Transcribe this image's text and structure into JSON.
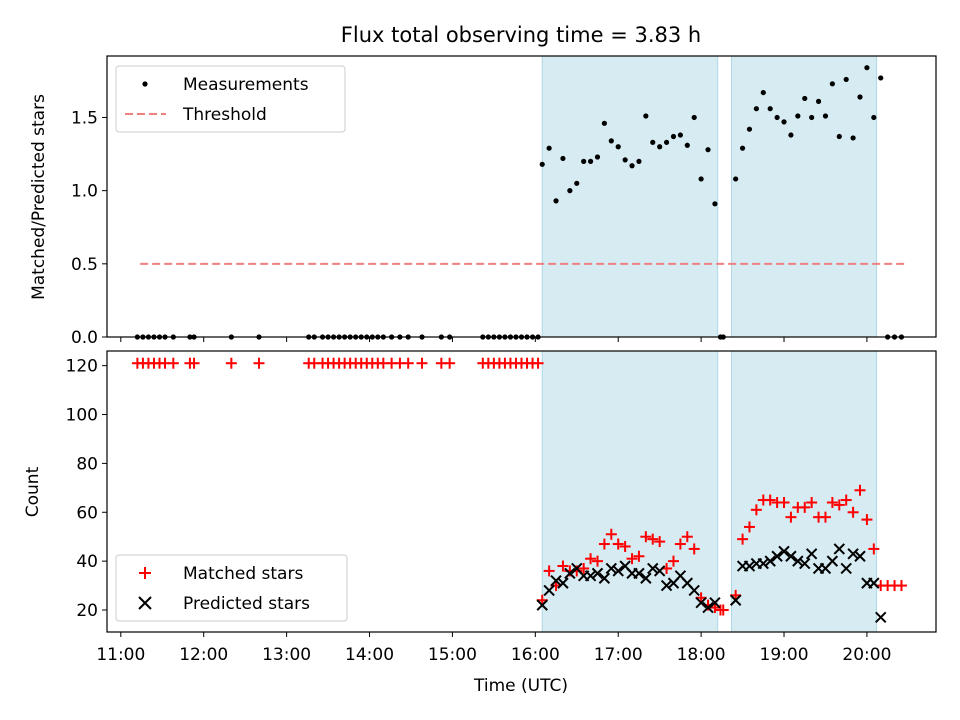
{
  "chart_data": [
    {
      "type": "scatter",
      "title": "Flux total observing time = 3.83 h",
      "xlabel": "",
      "ylabel": "Matched/Predicted stars",
      "xlim": [
        "10:50",
        "20:50"
      ],
      "ylim": [
        0,
        1.92
      ],
      "yticks": [
        "0.0",
        "0.5",
        "1.0",
        "1.5"
      ],
      "shaded_intervals": [
        [
          "16:05",
          "18:12"
        ],
        [
          "18:22",
          "20:07"
        ]
      ],
      "legend": "upper-left",
      "series": [
        {
          "name": "Measurements",
          "marker": "dot",
          "color": "#000000",
          "points": [
            [
              "11:12",
              0
            ],
            [
              "11:16",
              0
            ],
            [
              "11:20",
              0
            ],
            [
              "11:24",
              0
            ],
            [
              "11:28",
              0
            ],
            [
              "11:32",
              0
            ],
            [
              "11:38",
              0
            ],
            [
              "11:50",
              0
            ],
            [
              "11:53",
              0
            ],
            [
              "12:20",
              0
            ],
            [
              "12:40",
              0
            ],
            [
              "13:16",
              0
            ],
            [
              "13:20",
              0
            ],
            [
              "13:26",
              0
            ],
            [
              "13:30",
              0
            ],
            [
              "13:34",
              0
            ],
            [
              "13:38",
              0
            ],
            [
              "13:42",
              0
            ],
            [
              "13:46",
              0
            ],
            [
              "13:50",
              0
            ],
            [
              "13:54",
              0
            ],
            [
              "13:58",
              0
            ],
            [
              "14:02",
              0
            ],
            [
              "14:06",
              0
            ],
            [
              "14:10",
              0
            ],
            [
              "14:16",
              0
            ],
            [
              "14:22",
              0
            ],
            [
              "14:28",
              0
            ],
            [
              "14:38",
              0
            ],
            [
              "14:52",
              0
            ],
            [
              "14:58",
              0
            ],
            [
              "15:22",
              0
            ],
            [
              "15:26",
              0
            ],
            [
              "15:30",
              0
            ],
            [
              "15:34",
              0
            ],
            [
              "15:38",
              0
            ],
            [
              "15:42",
              0
            ],
            [
              "15:46",
              0
            ],
            [
              "15:50",
              0
            ],
            [
              "15:54",
              0
            ],
            [
              "15:58",
              0
            ],
            [
              "16:02",
              0
            ],
            [
              "16:05",
              1.18
            ],
            [
              "16:10",
              1.29
            ],
            [
              "16:15",
              0.93
            ],
            [
              "16:20",
              1.22
            ],
            [
              "16:25",
              1.0
            ],
            [
              "16:30",
              1.05
            ],
            [
              "16:35",
              1.2
            ],
            [
              "16:40",
              1.2
            ],
            [
              "16:45",
              1.23
            ],
            [
              "16:50",
              1.46
            ],
            [
              "16:55",
              1.34
            ],
            [
              "17:00",
              1.3
            ],
            [
              "17:05",
              1.21
            ],
            [
              "17:10",
              1.17
            ],
            [
              "17:15",
              1.2
            ],
            [
              "17:20",
              1.51
            ],
            [
              "17:25",
              1.33
            ],
            [
              "17:30",
              1.3
            ],
            [
              "17:35",
              1.33
            ],
            [
              "17:40",
              1.37
            ],
            [
              "17:45",
              1.38
            ],
            [
              "17:50",
              1.31
            ],
            [
              "17:55",
              1.5
            ],
            [
              "18:00",
              1.08
            ],
            [
              "18:05",
              1.28
            ],
            [
              "18:10",
              0.91
            ],
            [
              "18:14",
              0
            ],
            [
              "18:16",
              0
            ],
            [
              "18:25",
              1.08
            ],
            [
              "18:30",
              1.29
            ],
            [
              "18:35",
              1.42
            ],
            [
              "18:40",
              1.56
            ],
            [
              "18:45",
              1.67
            ],
            [
              "18:50",
              1.56
            ],
            [
              "18:55",
              1.5
            ],
            [
              "19:00",
              1.47
            ],
            [
              "19:05",
              1.38
            ],
            [
              "19:10",
              1.51
            ],
            [
              "19:15",
              1.63
            ],
            [
              "19:20",
              1.5
            ],
            [
              "19:25",
              1.61
            ],
            [
              "19:30",
              1.51
            ],
            [
              "19:35",
              1.73
            ],
            [
              "19:40",
              1.37
            ],
            [
              "19:45",
              1.76
            ],
            [
              "19:50",
              1.36
            ],
            [
              "19:55",
              1.64
            ],
            [
              "20:00",
              1.84
            ],
            [
              "20:05",
              1.5
            ],
            [
              "20:10",
              1.77
            ],
            [
              "20:15",
              0
            ],
            [
              "20:20",
              0
            ],
            [
              "20:25",
              0
            ]
          ]
        },
        {
          "name": "Threshold",
          "marker": "dashed-line",
          "color": "#f08080",
          "points": [
            [
              "11:14",
              0.5
            ],
            [
              "20:28",
              0.5
            ]
          ]
        }
      ]
    },
    {
      "type": "scatter",
      "title": "",
      "xlabel": "Time (UTC)",
      "ylabel": "Count",
      "xlim": [
        "10:50",
        "20:50"
      ],
      "ylim": [
        11,
        126
      ],
      "yticks": [
        "20",
        "40",
        "60",
        "80",
        "100",
        "120"
      ],
      "xticks": [
        "11:00",
        "12:00",
        "13:00",
        "14:00",
        "15:00",
        "16:00",
        "17:00",
        "18:00",
        "19:00",
        "20:00"
      ],
      "shaded_intervals": [
        [
          "16:05",
          "18:12"
        ],
        [
          "18:22",
          "20:07"
        ]
      ],
      "legend": "lower-left",
      "series": [
        {
          "name": "Matched stars",
          "marker": "plus",
          "color": "#ff0000",
          "points": [
            [
              "11:12",
              121
            ],
            [
              "11:16",
              121
            ],
            [
              "11:20",
              121
            ],
            [
              "11:24",
              121
            ],
            [
              "11:28",
              121
            ],
            [
              "11:32",
              121
            ],
            [
              "11:38",
              121
            ],
            [
              "11:50",
              121
            ],
            [
              "11:53",
              121
            ],
            [
              "12:20",
              121
            ],
            [
              "12:40",
              121
            ],
            [
              "13:16",
              121
            ],
            [
              "13:20",
              121
            ],
            [
              "13:26",
              121
            ],
            [
              "13:30",
              121
            ],
            [
              "13:34",
              121
            ],
            [
              "13:38",
              121
            ],
            [
              "13:42",
              121
            ],
            [
              "13:46",
              121
            ],
            [
              "13:50",
              121
            ],
            [
              "13:54",
              121
            ],
            [
              "13:58",
              121
            ],
            [
              "14:02",
              121
            ],
            [
              "14:06",
              121
            ],
            [
              "14:10",
              121
            ],
            [
              "14:16",
              121
            ],
            [
              "14:22",
              121
            ],
            [
              "14:28",
              121
            ],
            [
              "14:38",
              121
            ],
            [
              "14:52",
              121
            ],
            [
              "14:58",
              121
            ],
            [
              "15:22",
              121
            ],
            [
              "15:26",
              121
            ],
            [
              "15:30",
              121
            ],
            [
              "15:34",
              121
            ],
            [
              "15:38",
              121
            ],
            [
              "15:42",
              121
            ],
            [
              "15:46",
              121
            ],
            [
              "15:50",
              121
            ],
            [
              "15:54",
              121
            ],
            [
              "15:58",
              121
            ],
            [
              "16:02",
              121
            ],
            [
              "16:05",
              24
            ],
            [
              "16:10",
              36
            ],
            [
              "16:15",
              30
            ],
            [
              "16:20",
              38
            ],
            [
              "16:25",
              36
            ],
            [
              "16:30",
              36
            ],
            [
              "16:35",
              37
            ],
            [
              "16:40",
              41
            ],
            [
              "16:45",
              40
            ],
            [
              "16:50",
              47
            ],
            [
              "16:55",
              51
            ],
            [
              "17:00",
              47
            ],
            [
              "17:05",
              46
            ],
            [
              "17:10",
              41
            ],
            [
              "17:15",
              42
            ],
            [
              "17:20",
              50
            ],
            [
              "17:25",
              49
            ],
            [
              "17:30",
              48
            ],
            [
              "17:35",
              37
            ],
            [
              "17:40",
              40
            ],
            [
              "17:45",
              47
            ],
            [
              "17:50",
              50
            ],
            [
              "17:55",
              45
            ],
            [
              "18:00",
              25
            ],
            [
              "18:05",
              22
            ],
            [
              "18:10",
              21
            ],
            [
              "18:14",
              20
            ],
            [
              "18:16",
              20
            ],
            [
              "18:25",
              26
            ],
            [
              "18:30",
              49
            ],
            [
              "18:35",
              54
            ],
            [
              "18:40",
              61
            ],
            [
              "18:45",
              65
            ],
            [
              "18:50",
              65
            ],
            [
              "18:55",
              64
            ],
            [
              "19:00",
              64
            ],
            [
              "19:05",
              58
            ],
            [
              "19:10",
              62
            ],
            [
              "19:15",
              62
            ],
            [
              "19:20",
              64
            ],
            [
              "19:25",
              58
            ],
            [
              "19:30",
              58
            ],
            [
              "19:35",
              64
            ],
            [
              "19:40",
              63
            ],
            [
              "19:45",
              65
            ],
            [
              "19:50",
              60
            ],
            [
              "19:55",
              69
            ],
            [
              "20:00",
              57
            ],
            [
              "20:05",
              45
            ],
            [
              "20:10",
              30
            ],
            [
              "20:15",
              30
            ],
            [
              "20:20",
              30
            ],
            [
              "20:25",
              30
            ]
          ]
        },
        {
          "name": "Predicted stars",
          "marker": "x",
          "color": "#000000",
          "points": [
            [
              "16:05",
              22
            ],
            [
              "16:10",
              28
            ],
            [
              "16:15",
              32
            ],
            [
              "16:20",
              31
            ],
            [
              "16:25",
              35
            ],
            [
              "16:30",
              37
            ],
            [
              "16:35",
              34
            ],
            [
              "16:40",
              34
            ],
            [
              "16:45",
              35
            ],
            [
              "16:50",
              33
            ],
            [
              "16:55",
              37
            ],
            [
              "17:00",
              36
            ],
            [
              "17:05",
              38
            ],
            [
              "17:10",
              35
            ],
            [
              "17:15",
              35
            ],
            [
              "17:20",
              33
            ],
            [
              "17:25",
              37
            ],
            [
              "17:30",
              36
            ],
            [
              "17:35",
              30
            ],
            [
              "17:40",
              31
            ],
            [
              "17:45",
              34
            ],
            [
              "17:50",
              31
            ],
            [
              "17:55",
              28
            ],
            [
              "18:00",
              23
            ],
            [
              "18:05",
              21
            ],
            [
              "18:10",
              23
            ],
            [
              "18:25",
              24
            ],
            [
              "18:30",
              38
            ],
            [
              "18:35",
              38
            ],
            [
              "18:40",
              39
            ],
            [
              "18:45",
              39
            ],
            [
              "18:50",
              40
            ],
            [
              "18:55",
              42
            ],
            [
              "19:00",
              44
            ],
            [
              "19:05",
              42
            ],
            [
              "19:10",
              40
            ],
            [
              "19:15",
              39
            ],
            [
              "19:20",
              43
            ],
            [
              "19:25",
              37
            ],
            [
              "19:30",
              37
            ],
            [
              "19:35",
              40
            ],
            [
              "19:40",
              45
            ],
            [
              "19:45",
              37
            ],
            [
              "19:50",
              43
            ],
            [
              "19:55",
              42
            ],
            [
              "20:00",
              31
            ],
            [
              "20:05",
              31
            ],
            [
              "20:10",
              17
            ]
          ]
        }
      ]
    }
  ]
}
